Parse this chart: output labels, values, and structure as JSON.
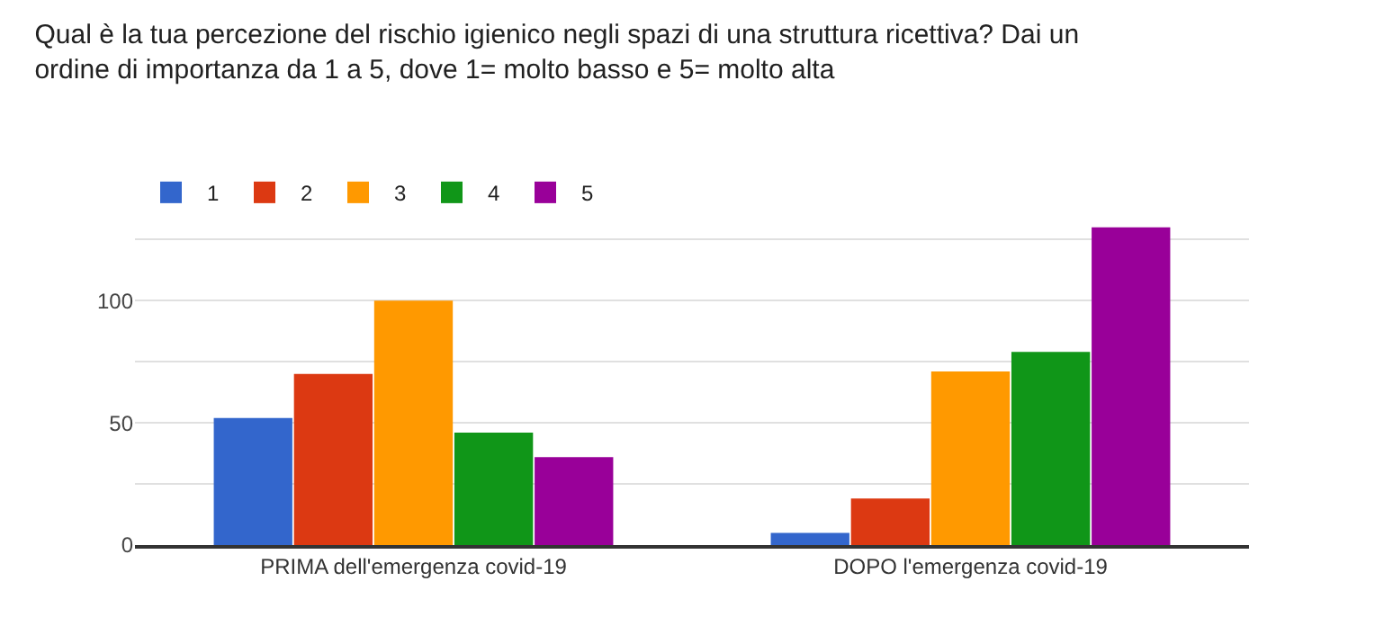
{
  "chart_data": {
    "type": "bar",
    "title": "Qual è la tua percezione del rischio igienico negli spazi di una struttura ricettiva? Dai un\nordine di importanza da 1 a 5, dove 1= molto basso e 5= molto alta",
    "categories": [
      "PRIMA dell'emergenza covid-19",
      "DOPO l'emergenza covid-19"
    ],
    "series": [
      {
        "name": "1",
        "color": "#3366cc",
        "values": [
          52,
          5
        ]
      },
      {
        "name": "2",
        "color": "#dc3912",
        "values": [
          70,
          19
        ]
      },
      {
        "name": "3",
        "color": "#ff9900",
        "values": [
          100,
          71
        ]
      },
      {
        "name": "4",
        "color": "#109618",
        "values": [
          46,
          79
        ]
      },
      {
        "name": "5",
        "color": "#990099",
        "values": [
          36,
          130
        ]
      }
    ],
    "ylim": [
      0,
      131
    ],
    "yticks": [
      0,
      {
        "value": 25,
        "label": null
      },
      50,
      {
        "value": 75,
        "label": null
      },
      100,
      {
        "value": 125,
        "label": null
      }
    ],
    "grid": "y",
    "legend": "top left"
  }
}
